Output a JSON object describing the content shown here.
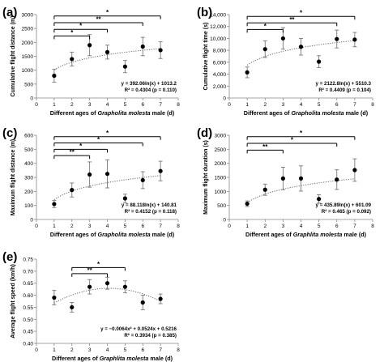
{
  "chart_data": [
    {
      "type": "scatter",
      "panel_label": "(a)",
      "ylabel": "Cumulative flight distance (m)",
      "xlabel_parts": [
        "Different ages of ",
        "Grapholita molesta",
        " male (d)"
      ],
      "x": [
        1,
        2,
        3,
        4,
        5,
        6,
        7
      ],
      "y": [
        800,
        1400,
        1900,
        1650,
        1130,
        1850,
        1720
      ],
      "err": [
        230,
        250,
        380,
        250,
        220,
        330,
        300
      ],
      "xlim": [
        0,
        8
      ],
      "ylim": [
        0,
        3000
      ],
      "yticks": [
        "0",
        "500",
        "1000",
        "1500",
        "2000",
        "2500",
        "3000"
      ],
      "xticks": [
        "0",
        "1",
        "2",
        "3",
        "4",
        "5",
        "6",
        "7",
        "8"
      ],
      "trend": {
        "type": "log",
        "a": 392.06,
        "b": 1013.2
      },
      "equation": [
        "y = 392.06ln(x) + 1013.2",
        "R² = 0.4304 (p = 0.110)"
      ],
      "brackets": [
        {
          "from": 1,
          "to": 7,
          "y": 2950,
          "label": "*"
        },
        {
          "from": 1,
          "to": 6,
          "y": 2710,
          "label": "**"
        },
        {
          "from": 1,
          "to": 4,
          "y": 2470,
          "label": "*"
        },
        {
          "from": 1,
          "to": 3,
          "y": 2230,
          "label": "*"
        }
      ]
    },
    {
      "type": "scatter",
      "panel_label": "(b)",
      "ylabel": "Cumulative flight time (s)",
      "xlabel_parts": [
        "Different ages of ",
        "Grapholita molesta",
        " male (d)"
      ],
      "x": [
        1,
        2,
        3,
        4,
        5,
        6,
        7
      ],
      "y": [
        4300,
        8200,
        10000,
        8600,
        6100,
        9900,
        9800
      ],
      "err": [
        900,
        1400,
        1800,
        1400,
        1000,
        1500,
        1200
      ],
      "xlim": [
        0,
        8
      ],
      "ylim": [
        0,
        14000
      ],
      "yticks": [
        "0",
        "2,000",
        "4,000",
        "6,000",
        "8,000",
        "10,000",
        "12,000",
        "14,000"
      ],
      "xticks": [
        "0",
        "1",
        "2",
        "3",
        "4",
        "5",
        "6",
        "7",
        "8"
      ],
      "trend": {
        "type": "log",
        "a": 2122.8,
        "b": 5510.3
      },
      "equation": [
        "y = 2122.8ln(x) + 5510.3",
        "R² = 0.4409 (p = 0.104)"
      ],
      "brackets": [
        {
          "from": 1,
          "to": 7,
          "y": 13700,
          "label": "*"
        },
        {
          "from": 1,
          "to": 6,
          "y": 12600,
          "label": "**"
        },
        {
          "from": 1,
          "to": 3,
          "y": 11500,
          "label": "*"
        }
      ]
    },
    {
      "type": "scatter",
      "panel_label": "(c)",
      "ylabel": "Maximum flight distance (m)",
      "xlabel_parts": [
        "Different ages of ",
        "Grapholita molesta",
        " male (d)"
      ],
      "x": [
        1,
        2,
        3,
        4,
        5,
        6,
        7
      ],
      "y": [
        110,
        210,
        320,
        325,
        150,
        280,
        345
      ],
      "err": [
        25,
        50,
        90,
        100,
        30,
        60,
        70
      ],
      "xlim": [
        0,
        8
      ],
      "ylim": [
        0,
        600
      ],
      "yticks": [
        "0",
        "100",
        "200",
        "300",
        "400",
        "500",
        "600"
      ],
      "xticks": [
        "0",
        "1",
        "2",
        "3",
        "4",
        "5",
        "6",
        "7",
        "8"
      ],
      "trend": {
        "type": "log",
        "a": 88.118,
        "b": 140.81
      },
      "equation": [
        "y = 88.118ln(x) + 140.81",
        "R² = 0.4152 (p = 0.118)"
      ],
      "brackets": [
        {
          "from": 1,
          "to": 7,
          "y": 590,
          "label": "*"
        },
        {
          "from": 1,
          "to": 6,
          "y": 545,
          "label": "*"
        },
        {
          "from": 1,
          "to": 4,
          "y": 500,
          "label": "*"
        },
        {
          "from": 1,
          "to": 3,
          "y": 455,
          "label": "**"
        }
      ]
    },
    {
      "type": "scatter",
      "panel_label": "(d)",
      "ylabel": "Maximum flight duration (s)",
      "xlabel_parts": [
        "Different ages of ",
        "Graphlita molesta",
        " male (d)"
      ],
      "x": [
        1,
        2,
        3,
        4,
        5,
        6,
        7
      ],
      "y": [
        560,
        1060,
        1460,
        1460,
        730,
        1420,
        1760
      ],
      "err": [
        100,
        200,
        400,
        450,
        150,
        350,
        400
      ],
      "xlim": [
        0,
        8
      ],
      "ylim": [
        0,
        3000
      ],
      "yticks": [
        "0",
        "500",
        "1000",
        "1500",
        "2000",
        "2500",
        "3000"
      ],
      "xticks": [
        "0",
        "1",
        "2",
        "3",
        "4",
        "5",
        "6",
        "7",
        "8"
      ],
      "trend": {
        "type": "log",
        "a": 435.89,
        "b": 601.09
      },
      "equation": [
        "y = 435.89ln(x) + 601.09",
        "R² = 0.465 (p = 0.092)"
      ],
      "brackets": [
        {
          "from": 1,
          "to": 7,
          "y": 2950,
          "label": "*"
        },
        {
          "from": 1,
          "to": 6,
          "y": 2710,
          "label": "*"
        },
        {
          "from": 1,
          "to": 3,
          "y": 2470,
          "label": "**"
        }
      ]
    },
    {
      "type": "scatter",
      "panel_label": "(e)",
      "ylabel": "Average flight speed (km/h)",
      "xlabel_parts": [
        "Different ages of ",
        "Graphlita molesta",
        " male (d)"
      ],
      "x": [
        1,
        2,
        3,
        4,
        5,
        6,
        7
      ],
      "y": [
        0.59,
        0.55,
        0.635,
        0.65,
        0.635,
        0.57,
        0.585
      ],
      "err": [
        0.03,
        0.02,
        0.03,
        0.025,
        0.025,
        0.03,
        0.02
      ],
      "xlim": [
        0,
        8
      ],
      "ylim": [
        0.4,
        0.75
      ],
      "yticks": [
        "0.40",
        "0.45",
        "0.50",
        "0.55",
        "0.60",
        "0.65",
        "0.70",
        "0.75"
      ],
      "xticks": [
        "0",
        "1",
        "2",
        "3",
        "4",
        "5",
        "6",
        "7",
        "8"
      ],
      "trend": {
        "type": "poly2",
        "a": -0.0064,
        "b": 0.0524,
        "c": 0.5216
      },
      "equation": [
        "y = −0.0064x² + 0.0524x + 0.5216",
        "R² = 0.3934   (p = 0.385)"
      ],
      "brackets": [
        {
          "from": 2,
          "to": 5,
          "y": 0.715,
          "label": "*"
        },
        {
          "from": 2,
          "to": 4,
          "y": 0.69,
          "label": "**"
        }
      ]
    }
  ]
}
